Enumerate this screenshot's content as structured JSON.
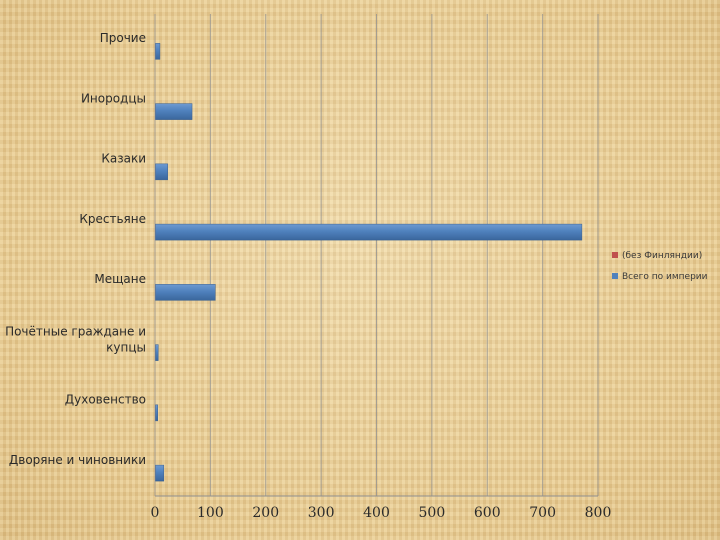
{
  "chart_data": {
    "type": "bar",
    "orientation": "horizontal",
    "categories": [
      "Дворяне и чиновники",
      "Духовенство",
      "Почётные граждане и купцы",
      "Мещане",
      "Крестьяне",
      "Казаки",
      "Инородцы",
      "Прочие"
    ],
    "category_label_lines": [
      [
        "Дворяне и чиновники"
      ],
      [
        "Духовенство"
      ],
      [
        "Почётные граждане и",
        "купцы"
      ],
      [
        "Мещане"
      ],
      [
        "Крестьяне"
      ],
      [
        "Казаки"
      ],
      [
        "Инородцы"
      ],
      [
        "Прочие"
      ]
    ],
    "series": [
      {
        "name": "(без Финляндии)",
        "color": "#c0504d",
        "values": [
          0,
          0,
          0,
          0,
          0,
          0,
          0,
          0
        ]
      },
      {
        "name": "Всего по империи",
        "color": "#4f81bd",
        "values": [
          15,
          4,
          5,
          108,
          770,
          22,
          66,
          8
        ]
      }
    ],
    "xlim": [
      0,
      800
    ],
    "xticks": [
      0,
      100,
      200,
      300,
      400,
      500,
      600,
      700,
      800
    ],
    "grid": true,
    "legend": "right",
    "title": "",
    "xlabel": "",
    "ylabel": ""
  }
}
